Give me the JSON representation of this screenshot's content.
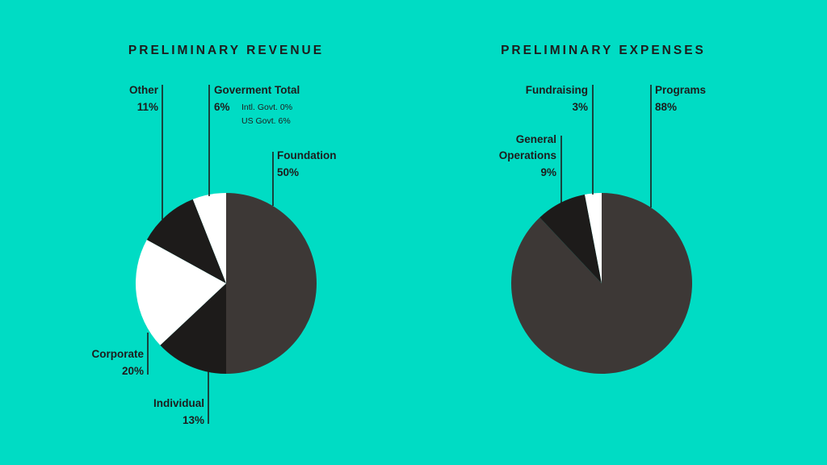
{
  "colors": {
    "background": "#00dcc4",
    "dark_gray": "#3d3836",
    "black": "#1d1b1a",
    "white": "#ffffff"
  },
  "chart_data": [
    {
      "type": "pie",
      "title": "PRELIMINARY REVENUE",
      "start_angle_deg": 0,
      "direction": "clockwise",
      "slices": [
        {
          "label": "Foundation",
          "value_label": "50%",
          "value": 50,
          "color": "#3d3836"
        },
        {
          "label": "Individual",
          "value_label": "13%",
          "value": 13,
          "color": "#1d1b1a"
        },
        {
          "label": "Corporate",
          "value_label": "20%",
          "value": 20,
          "color": "#ffffff"
        },
        {
          "label": "Other",
          "value_label": "11%",
          "value": 11,
          "color": "#1d1b1a"
        },
        {
          "label": "Goverment Total",
          "value_label": "6%",
          "value": 6,
          "color": "#ffffff",
          "breakdown": [
            {
              "label": "Intl. Govt.",
              "value_label": "0%",
              "value": 0
            },
            {
              "label": "US Govt.",
              "value_label": "6%",
              "value": 6
            }
          ]
        }
      ]
    },
    {
      "type": "pie",
      "title": "PRELIMINARY EXPENSES",
      "start_angle_deg": 0,
      "direction": "clockwise",
      "slices": [
        {
          "label": "Programs",
          "value_label": "88%",
          "value": 88,
          "color": "#3d3836"
        },
        {
          "label": "General Operations",
          "value_label": "9%",
          "value": 9,
          "color": "#1d1b1a"
        },
        {
          "label": "Fundraising",
          "value_label": "3%",
          "value": 3,
          "color": "#ffffff"
        }
      ]
    }
  ]
}
